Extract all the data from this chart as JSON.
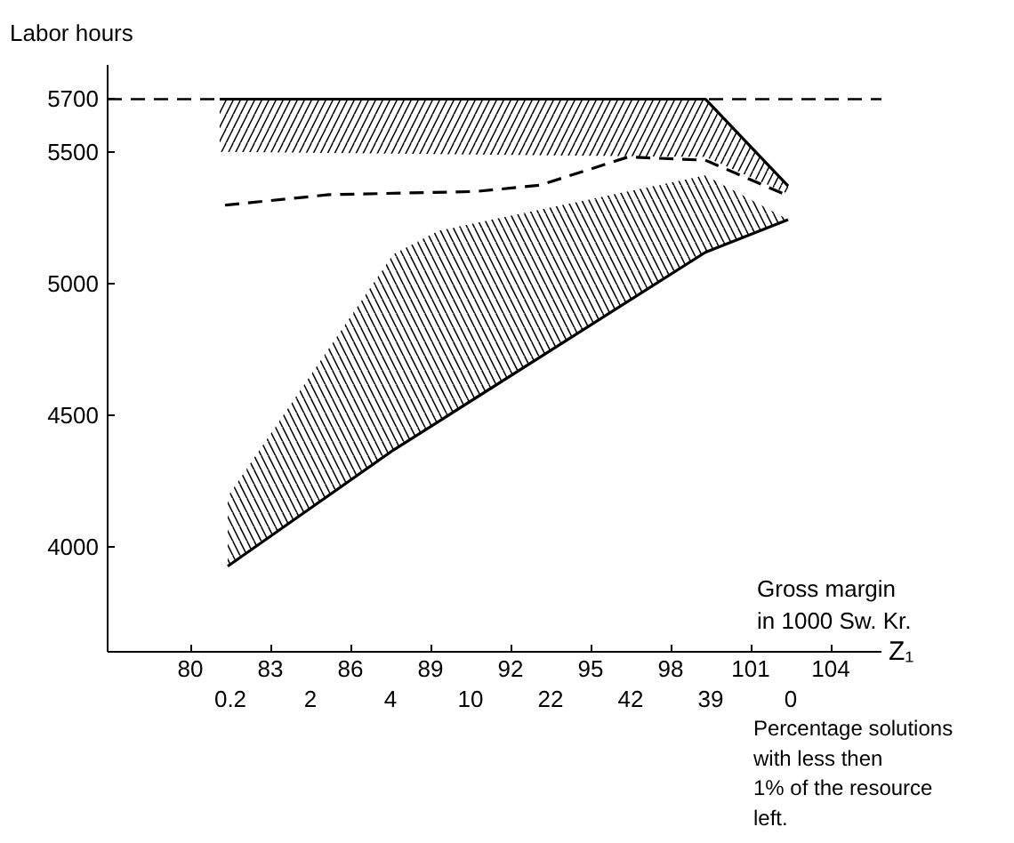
{
  "chart_data": {
    "type": "line",
    "ylabel": "Labor hours",
    "xlabel": "Gross margin\nin 1000 Sw. Kr.",
    "x2label": "Percentage solutions\nwith less then\n1% of the resource\nleft.",
    "annotations": [
      "Z₁",
      "0.2",
      "2",
      "4",
      "10",
      "22",
      "42",
      "39",
      "0"
    ],
    "xlim": [
      76.9,
      105.9
    ],
    "ylim": [
      3600,
      5830
    ],
    "xticks": [
      80,
      83,
      86,
      89,
      92,
      95,
      98,
      101,
      104
    ],
    "yticks": [
      4000,
      4500,
      5000,
      5500,
      5700
    ],
    "ref_lines": [
      {
        "axis": "y",
        "value": 5700,
        "color": "#000000",
        "line_style": "dashed"
      }
    ],
    "series": [
      {
        "color": "#000000",
        "line_style": "solid",
        "x": [
          81.1,
          99.3,
          102.4
        ],
        "values": [
          5700,
          5700,
          5370
        ],
        "lower": [
          5500,
          5480,
          5340
        ],
        "upper": [
          5700,
          5700,
          5370
        ]
      },
      {
        "color": "#000000",
        "line_style": "dashed",
        "x": [
          81.3,
          85.2,
          90.7,
          93.1,
          96.4,
          99.3,
          102.4
        ],
        "values": [
          5297,
          5337,
          5349,
          5373,
          5480,
          5468,
          5333
        ]
      },
      {
        "color": "#000000",
        "line_style": "solid",
        "x": [
          81.4,
          87.6,
          89.3,
          99.3,
          102.4
        ],
        "values": [
          3925,
          4366,
          4475,
          5118,
          5242
        ],
        "lower": [
          3925,
          4366,
          4475,
          5118,
          5242
        ],
        "upper": [
          4190,
          5110,
          5200,
          5410,
          5242
        ]
      }
    ]
  }
}
